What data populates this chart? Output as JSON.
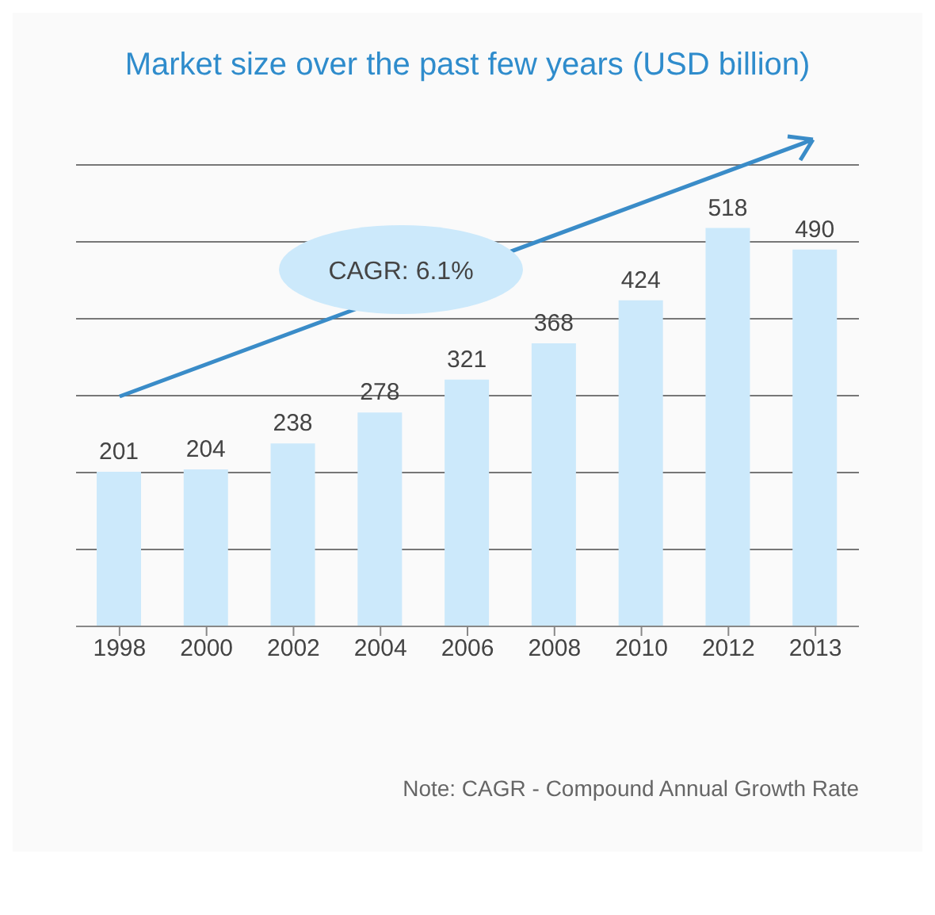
{
  "chart_data": {
    "type": "bar",
    "title": "Market size over the past few years (USD billion)",
    "categories": [
      "1998",
      "2000",
      "2002",
      "2004",
      "2006",
      "2008",
      "2010",
      "2012",
      "2013"
    ],
    "values": [
      201,
      204,
      238,
      278,
      321,
      368,
      424,
      518,
      490
    ],
    "color": "#cce9fb",
    "data_labels": true,
    "ylim": [
      0,
      600
    ],
    "yticks": [
      {
        "value": 0,
        "label": null
      },
      {
        "value": 100,
        "label": null
      },
      {
        "value": 200,
        "label": null
      },
      {
        "value": 300,
        "label": null
      },
      {
        "value": 400,
        "label": null
      },
      {
        "value": 500,
        "label": null
      },
      {
        "value": 600,
        "label": null
      }
    ],
    "grid": "y",
    "tick_labels": "x",
    "annotations": [
      "CAGR: 6.1%",
      "Note: CAGR - Compound Annual Growth Rate"
    ]
  }
}
